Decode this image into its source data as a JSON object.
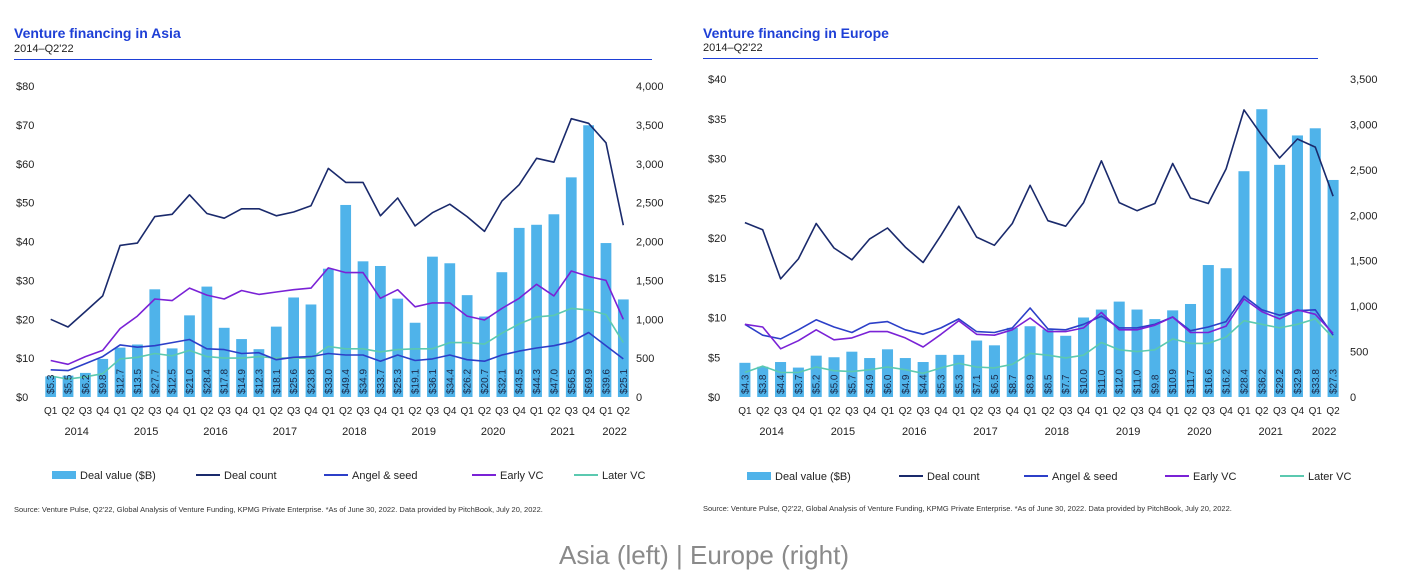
{
  "chart_data": [
    {
      "type": "bar+line",
      "title": "Venture financing in Asia",
      "subtitle": "2014–Q2'22",
      "left_axis_ticks": [
        "$0",
        "$10",
        "$20",
        "$30",
        "$40",
        "$50",
        "$60",
        "$70",
        "$80"
      ],
      "left_ylim": [
        0,
        80
      ],
      "right_axis_ticks": [
        "0",
        "500",
        "1,000",
        "1,500",
        "2,000",
        "2,500",
        "3,000",
        "3,500",
        "4,000"
      ],
      "right_ylim": [
        0,
        4000
      ],
      "quarters": [
        "Q1",
        "Q2",
        "Q3",
        "Q4",
        "Q1",
        "Q2",
        "Q3",
        "Q4",
        "Q1",
        "Q2",
        "Q3",
        "Q4",
        "Q1",
        "Q2",
        "Q3",
        "Q4",
        "Q1",
        "Q2",
        "Q3",
        "Q4",
        "Q1",
        "Q2",
        "Q3",
        "Q4",
        "Q1",
        "Q2",
        "Q3",
        "Q4",
        "Q1",
        "Q2",
        "Q3",
        "Q4",
        "Q1",
        "Q2"
      ],
      "years": [
        "2014",
        "2015",
        "2016",
        "2017",
        "2018",
        "2019",
        "2020",
        "2021",
        "2022"
      ],
      "deal_value_labels": [
        "$5.3",
        "$5.5",
        "$6.2",
        "$9.8",
        "$12.7",
        "$13.5",
        "$27.7",
        "$12.5",
        "$21.0",
        "$28.4",
        "$17.8",
        "$14.9",
        "$12.3",
        "$18.1",
        "$25.6",
        "$23.8",
        "$33.0",
        "$49.4",
        "$34.9",
        "$33.7",
        "$25.3",
        "$19.1",
        "$36.1",
        "$34.4",
        "$26.2",
        "$20.7",
        "$32.1",
        "$43.5",
        "$44.3",
        "$47.0",
        "$56.5",
        "$69.9",
        "$39.6",
        "$25.1"
      ],
      "deal_value": [
        5.3,
        5.5,
        6.2,
        9.8,
        12.7,
        13.5,
        27.7,
        12.5,
        21.0,
        28.4,
        17.8,
        14.9,
        12.3,
        18.1,
        25.6,
        23.8,
        33.0,
        49.4,
        34.9,
        33.7,
        25.3,
        19.1,
        36.1,
        34.4,
        26.2,
        20.7,
        32.1,
        43.5,
        44.3,
        47.0,
        56.5,
        69.9,
        39.6,
        25.1
      ],
      "deal_count": [
        1000,
        900,
        1100,
        1300,
        1950,
        1980,
        2320,
        2350,
        2600,
        2360,
        2300,
        2420,
        2420,
        2330,
        2380,
        2460,
        2940,
        2760,
        2760,
        2330,
        2560,
        2200,
        2370,
        2480,
        2320,
        2130,
        2520,
        2730,
        3070,
        3020,
        3580,
        3520,
        3270,
        2210
      ],
      "angel_seed": [
        350,
        340,
        430,
        520,
        670,
        640,
        660,
        700,
        740,
        620,
        610,
        560,
        570,
        480,
        510,
        520,
        560,
        540,
        540,
        460,
        540,
        470,
        490,
        540,
        480,
        460,
        540,
        590,
        630,
        660,
        710,
        830,
        660,
        490
      ],
      "early_vc": [
        470,
        420,
        520,
        600,
        880,
        1040,
        1260,
        1240,
        1400,
        1310,
        1260,
        1370,
        1320,
        1350,
        1380,
        1400,
        1660,
        1600,
        1600,
        1270,
        1380,
        1160,
        1210,
        1210,
        1040,
        990,
        1140,
        1270,
        1450,
        1300,
        1620,
        1550,
        1500,
        1000
      ],
      "later_vc": [
        270,
        230,
        260,
        300,
        490,
        510,
        560,
        530,
        600,
        520,
        500,
        500,
        520,
        500,
        500,
        500,
        650,
        620,
        620,
        580,
        610,
        620,
        620,
        700,
        700,
        680,
        820,
        940,
        1030,
        1050,
        1140,
        1120,
        1060,
        700
      ],
      "legend": [
        "Deal value ($B)",
        "Deal count",
        "Angel & seed",
        "Early VC",
        "Later VC"
      ],
      "colors": {
        "bar": "#4fb3ea",
        "deal_count": "#1a2a6c",
        "angel_seed": "#2c3fc8",
        "early_vc": "#7a22d6",
        "later_vc": "#5bc9b0"
      },
      "source": "Source: Venture Pulse, Q2'22, Global Analysis of Venture Funding, KPMG Private Enterprise. *As of June 30, 2022. Data provided by PitchBook, July 20, 2022."
    },
    {
      "type": "bar+line",
      "title": "Venture financing in Europe",
      "subtitle": "2014–Q2'22",
      "left_axis_ticks": [
        "$0",
        "$5",
        "$10",
        "$15",
        "$20",
        "$25",
        "$30",
        "$35",
        "$40"
      ],
      "left_ylim": [
        0,
        40
      ],
      "right_axis_ticks": [
        "0",
        "500",
        "1,000",
        "1,500",
        "2,000",
        "2,500",
        "3,000",
        "3,500"
      ],
      "right_ylim": [
        0,
        3500
      ],
      "quarters": [
        "Q1",
        "Q2",
        "Q3",
        "Q4",
        "Q1",
        "Q2",
        "Q3",
        "Q4",
        "Q1",
        "Q2",
        "Q3",
        "Q4",
        "Q1",
        "Q2",
        "Q3",
        "Q4",
        "Q1",
        "Q2",
        "Q3",
        "Q4",
        "Q1",
        "Q2",
        "Q3",
        "Q4",
        "Q1",
        "Q2",
        "Q3",
        "Q4",
        "Q1",
        "Q2",
        "Q3",
        "Q4",
        "Q1",
        "Q2"
      ],
      "years": [
        "2014",
        "2015",
        "2016",
        "2017",
        "2018",
        "2019",
        "2020",
        "2021",
        "2022"
      ],
      "deal_value_labels": [
        "$4.3",
        "$3.8",
        "$4.4",
        "$3.7",
        "$5.2",
        "$5.0",
        "$5.7",
        "$4.9",
        "$6.0",
        "$4.9",
        "$4.4",
        "$5.3",
        "$5.3",
        "$7.1",
        "$6.5",
        "$8.7",
        "$8.9",
        "$8.5",
        "$7.7",
        "$10.0",
        "$11.0",
        "$12.0",
        "$11.0",
        "$9.8",
        "$10.9",
        "$11.7",
        "$16.6",
        "$16.2",
        "$28.4",
        "$36.2",
        "$29.2",
        "$32.9",
        "$33.8",
        "$27.3"
      ],
      "deal_value": [
        4.3,
        3.8,
        4.4,
        3.7,
        5.2,
        5.0,
        5.7,
        4.9,
        6.0,
        4.9,
        4.4,
        5.3,
        5.3,
        7.1,
        6.5,
        8.7,
        8.9,
        8.5,
        7.7,
        10.0,
        11.0,
        12.0,
        11.0,
        9.8,
        10.9,
        11.7,
        16.6,
        16.2,
        28.4,
        36.2,
        29.2,
        32.9,
        33.8,
        27.3
      ],
      "deal_count": [
        1920,
        1840,
        1300,
        1520,
        1910,
        1640,
        1510,
        1740,
        1860,
        1650,
        1480,
        1780,
        2100,
        1760,
        1670,
        1910,
        2330,
        1940,
        1880,
        2140,
        2600,
        2140,
        2050,
        2130,
        2570,
        2190,
        2130,
        2510,
        3160,
        2880,
        2630,
        2840,
        2750,
        2210
      ],
      "angel_seed": [
        800,
        680,
        640,
        740,
        850,
        770,
        710,
        810,
        830,
        740,
        690,
        760,
        860,
        720,
        710,
        760,
        980,
        750,
        740,
        800,
        890,
        760,
        760,
        800,
        880,
        730,
        770,
        830,
        1110,
        960,
        900,
        950,
        960,
        680
      ],
      "early_vc": [
        800,
        770,
        530,
        620,
        740,
        630,
        650,
        720,
        720,
        650,
        550,
        690,
        840,
        690,
        680,
        740,
        870,
        720,
        720,
        760,
        930,
        740,
        740,
        790,
        880,
        710,
        710,
        780,
        1080,
        940,
        860,
        960,
        910,
        700
      ],
      "later_vc": [
        270,
        340,
        270,
        270,
        330,
        290,
        280,
        300,
        330,
        300,
        260,
        320,
        370,
        330,
        320,
        360,
        480,
        460,
        430,
        460,
        600,
        520,
        500,
        520,
        640,
        590,
        590,
        660,
        840,
        800,
        760,
        800,
        860,
        650
      ],
      "legend": [
        "Deal value ($B)",
        "Deal count",
        "Angel & seed",
        "Early VC",
        "Later VC"
      ],
      "colors": {
        "bar": "#4fb3ea",
        "deal_count": "#1a2a6c",
        "angel_seed": "#2c3fc8",
        "early_vc": "#7a22d6",
        "later_vc": "#5bc9b0"
      },
      "source": "Source: Venture Pulse, Q2'22, Global Analysis of Venture Funding, KPMG Private Enterprise. *As of June 30, 2022. Data provided by PitchBook, July 20, 2022."
    }
  ],
  "caption": "Asia (left) | Europe (right)"
}
